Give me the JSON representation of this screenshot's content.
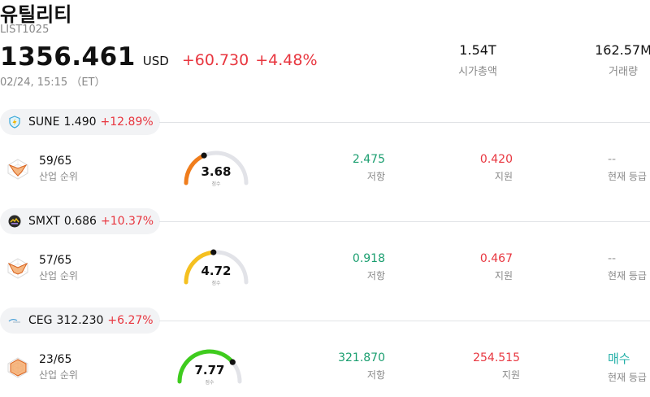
{
  "header": {
    "title": "유틸리티",
    "code": "LIST1025",
    "price": "1356.461",
    "currency": "USD",
    "change": "+60.730",
    "change_pct": "+4.48%",
    "datetime": "02/24, 15:15 （ET）"
  },
  "stats": {
    "market_cap": {
      "value": "1.54T",
      "label": "시가총액"
    },
    "volume": {
      "value": "162.57M",
      "label": "거래량"
    }
  },
  "stocks": [
    {
      "symbol": "SUNE",
      "price": "1.490",
      "change_pct": "+12.89%",
      "logo": "bolt-shield-icon",
      "rank": "59/65",
      "rank_label": "산업 순위",
      "score": "3.68",
      "score_value": 3.68,
      "score_label": "점수",
      "gauge_color": "#f07d1c",
      "resistance": "2.475",
      "resistance_label": "저항",
      "support": "0.420",
      "support_label": "지원",
      "grade": "--",
      "grade_label": "현재 등급"
    },
    {
      "symbol": "SMXT",
      "price": "0.686",
      "change_pct": "+10.37%",
      "logo": "smx-logo-icon",
      "rank": "57/65",
      "rank_label": "산업 순위",
      "score": "4.72",
      "score_value": 4.72,
      "score_label": "점수",
      "gauge_color": "#f5c020",
      "resistance": "0.918",
      "resistance_label": "저항",
      "support": "0.467",
      "support_label": "지원",
      "grade": "--",
      "grade_label": "현재 등급"
    },
    {
      "symbol": "CEG",
      "price": "312.230",
      "change_pct": "+6.27%",
      "logo": "constellation-logo-icon",
      "rank": "23/65",
      "rank_label": "산업 순위",
      "score": "7.77",
      "score_value": 7.77,
      "score_label": "점수",
      "gauge_color": "#3fcc1e",
      "resistance": "321.870",
      "resistance_label": "저항",
      "support": "254.515",
      "support_label": "지원",
      "grade": "매수",
      "grade_label": "현재 등급"
    }
  ]
}
